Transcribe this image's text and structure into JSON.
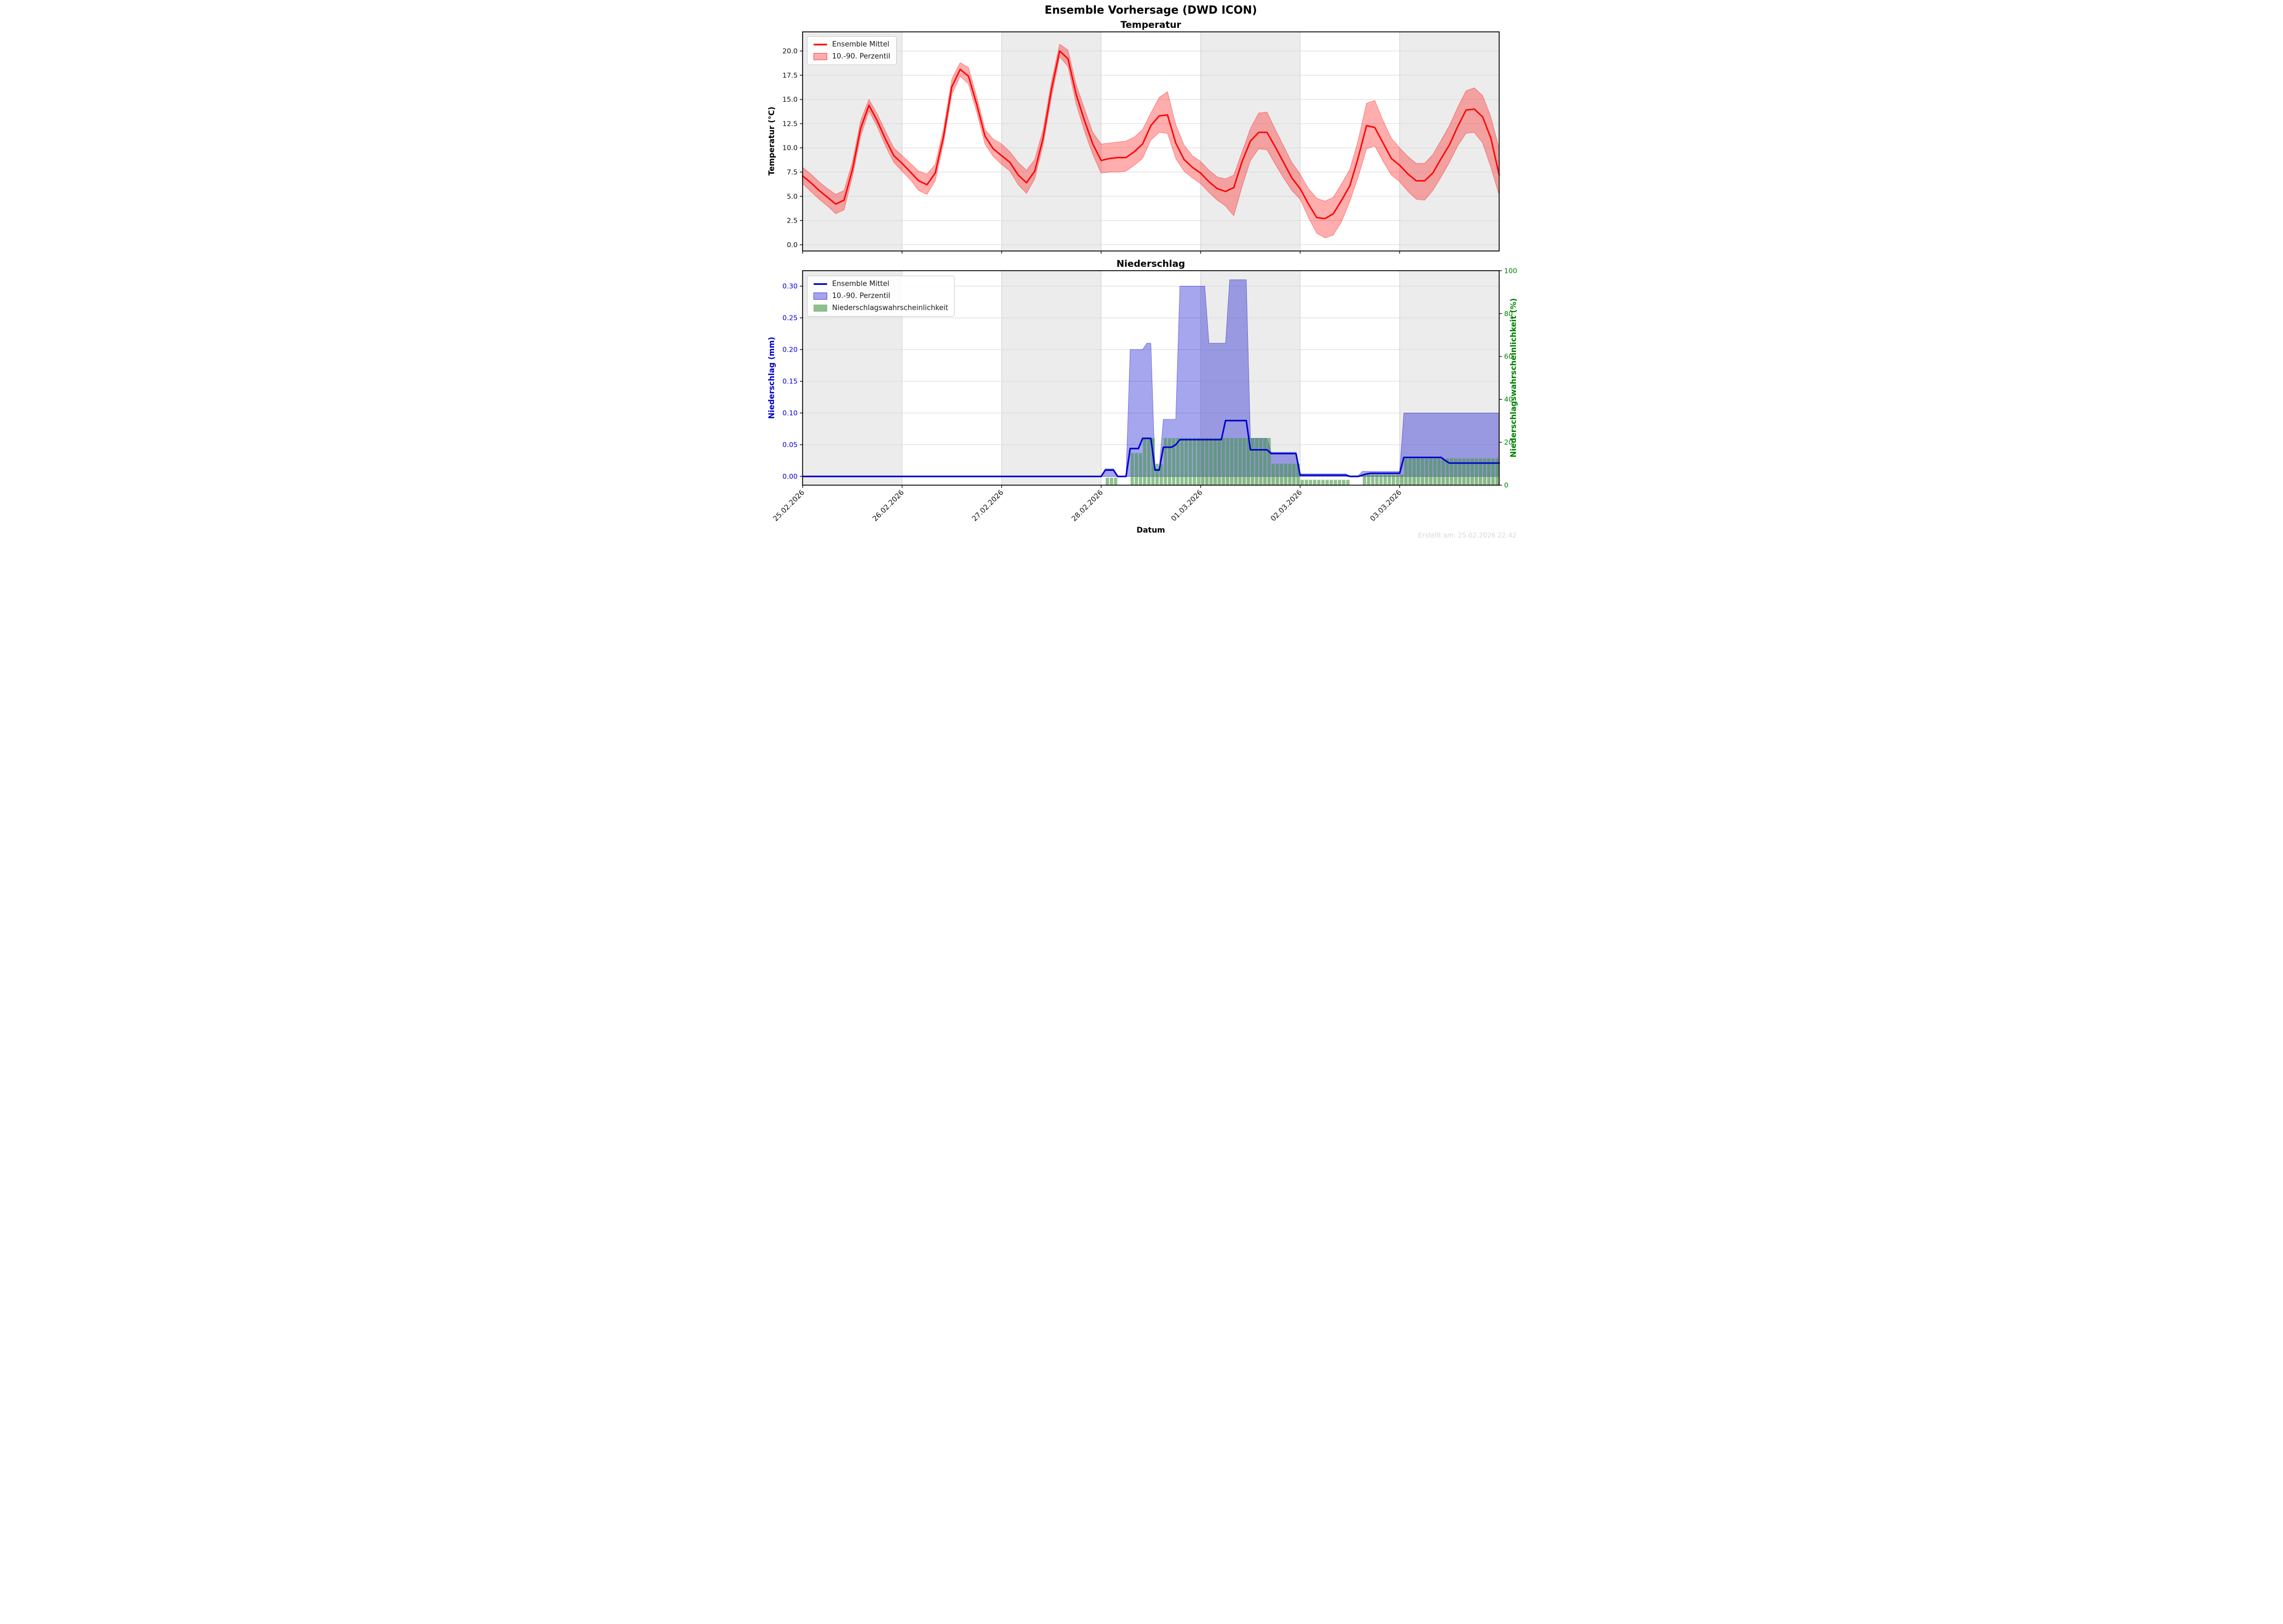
{
  "title": "Ensemble Vorhersage (DWD ICON)",
  "footer": "Erstellt am: 25.02.2026 22:42",
  "x_axis": {
    "label": "Datum",
    "tick_labels": [
      "25.02.2026",
      "26.02.2026",
      "27.02.2026",
      "28.02.2026",
      "01.03.2026",
      "02.03.2026",
      "03.03.2026"
    ],
    "total_hours": 168,
    "day_starts": [
      0,
      24,
      48,
      72,
      96,
      120,
      144
    ]
  },
  "colors": {
    "temp_line": "#ff0000",
    "temp_band_fill": "rgba(255,0,0,0.32)",
    "temp_band_edge": "rgba(255,0,0,0.5)",
    "precip_line": "#0000cd",
    "precip_band_fill": "rgba(0,0,205,0.35)",
    "precip_band_edge": "rgba(0,0,205,0.5)",
    "prob_bar_fill": "rgba(65,150,65,0.59)",
    "day_shade": "#ececec",
    "grid": "#d9d9d9",
    "grid_v": "#d0d0d0",
    "spine": "#000000",
    "tick_label": "#111111",
    "tick_label_mm": "#0000cd",
    "tick_label_pct": "#008000"
  },
  "chart_data": [
    {
      "type": "line",
      "title": "Temperatur",
      "ylabel": "Temperatur (°C)",
      "ylim": [
        -0.64,
        21.97
      ],
      "yticks": [
        0,
        2.5,
        5,
        7.5,
        10,
        12.5,
        15,
        17.5,
        20
      ],
      "ytick_labels": [
        "0.0",
        "2.5",
        "5.0",
        "7.5",
        "10.0",
        "12.5",
        "15.0",
        "17.5",
        "20.0"
      ],
      "x_step_hours": 2,
      "legend": [
        "Ensemble Mittel",
        "10.-90. Perzentil"
      ],
      "mean": [
        7.1,
        6.4,
        5.6,
        4.9,
        4.2,
        4.6,
        7.7,
        12.0,
        14.4,
        12.8,
        10.9,
        9.2,
        8.4,
        7.5,
        6.6,
        6.2,
        7.4,
        11.2,
        16.3,
        18.1,
        17.4,
        14.5,
        11.2,
        9.9,
        9.2,
        8.5,
        7.2,
        6.4,
        7.6,
        11.0,
        16.0,
        20.0,
        19.2,
        15.5,
        12.8,
        10.4,
        8.7,
        8.9,
        9.0,
        9.0,
        9.6,
        10.4,
        12.3,
        13.3,
        13.4,
        10.5,
        8.8,
        8.0,
        7.4,
        6.5,
        5.8,
        5.5,
        5.9,
        8.6,
        10.7,
        11.6,
        11.6,
        10.1,
        8.5,
        6.9,
        5.8,
        4.2,
        2.8,
        2.7,
        3.2,
        4.6,
        6.1,
        9.0,
        12.3,
        12.1,
        10.5,
        8.9,
        8.2,
        7.3,
        6.6,
        6.6,
        7.4,
        8.9,
        10.3,
        12.2,
        13.9,
        14.0,
        13.2,
        11.0,
        7.2
      ],
      "p10": [
        6.3,
        5.5,
        4.7,
        4.0,
        3.2,
        3.6,
        7.0,
        11.2,
        13.8,
        12.2,
        10.2,
        8.5,
        7.6,
        6.7,
        5.6,
        5.2,
        6.6,
        10.5,
        15.5,
        17.4,
        16.6,
        13.7,
        10.4,
        9.1,
        8.3,
        7.6,
        6.2,
        5.3,
        6.8,
        10.3,
        15.2,
        19.4,
        18.4,
        14.5,
        11.7,
        9.3,
        7.4,
        7.5,
        7.5,
        7.6,
        8.2,
        8.9,
        10.8,
        11.6,
        11.5,
        8.9,
        7.6,
        6.9,
        6.3,
        5.4,
        4.6,
        4.0,
        3.0,
        6.0,
        8.7,
        9.9,
        9.8,
        8.3,
        6.9,
        5.6,
        4.7,
        2.8,
        1.2,
        0.7,
        1.0,
        2.4,
        4.5,
        7.0,
        9.9,
        10.2,
        8.6,
        7.2,
        6.5,
        5.5,
        4.7,
        4.6,
        5.6,
        7.0,
        8.5,
        10.2,
        11.5,
        11.6,
        10.5,
        8.0,
        5.1
      ],
      "p90": [
        8.0,
        7.3,
        6.5,
        5.8,
        5.2,
        5.6,
        8.5,
        12.8,
        15.0,
        13.5,
        11.7,
        10.0,
        9.2,
        8.4,
        7.6,
        7.3,
        8.3,
        12.0,
        17.1,
        18.8,
        18.3,
        15.3,
        11.9,
        10.9,
        10.4,
        9.6,
        8.5,
        7.7,
        8.8,
        11.9,
        16.8,
        20.7,
        20.1,
        16.5,
        14.0,
        11.6,
        10.4,
        10.5,
        10.6,
        10.7,
        11.1,
        11.9,
        13.6,
        15.2,
        15.8,
        12.4,
        10.3,
        9.2,
        8.6,
        7.7,
        7.0,
        6.8,
        7.2,
        9.6,
        12.0,
        13.6,
        13.7,
        11.9,
        10.2,
        8.5,
        7.3,
        5.8,
        4.8,
        4.5,
        4.9,
        6.3,
        7.8,
        10.8,
        14.6,
        14.9,
        12.8,
        11.0,
        10.0,
        9.1,
        8.4,
        8.4,
        9.3,
        10.8,
        12.3,
        14.2,
        15.9,
        16.2,
        15.4,
        13.2,
        9.9
      ]
    },
    {
      "type": "line+bars",
      "title": "Niederschlag",
      "ylabel_left": "Niederschlag (mm)",
      "ylabel_right": "Niederschlagswahrscheinlichkeit (%)",
      "ylim_left": [
        -0.0138,
        0.3244
      ],
      "yticks_left": [
        0,
        0.05,
        0.1,
        0.15,
        0.2,
        0.25,
        0.3
      ],
      "ytick_labels_left": [
        "0.00",
        "0.05",
        "0.10",
        "0.15",
        "0.20",
        "0.25",
        "0.30"
      ],
      "ylim_right": [
        0,
        100
      ],
      "yticks_right": [
        0,
        20,
        40,
        60,
        80,
        100
      ],
      "ytick_labels_right": [
        "0",
        "20",
        "40",
        "60",
        "80",
        "100"
      ],
      "x_step_hours": 1,
      "legend": [
        "Ensemble Mittel",
        "10.-90. Perzentil",
        "Niederschlagswahrscheinlichkeit"
      ],
      "mean": [
        0,
        0,
        0,
        0,
        0,
        0,
        0,
        0,
        0,
        0,
        0,
        0,
        0,
        0,
        0,
        0,
        0,
        0,
        0,
        0,
        0,
        0,
        0,
        0,
        0,
        0,
        0,
        0,
        0,
        0,
        0,
        0,
        0,
        0,
        0,
        0,
        0,
        0,
        0,
        0,
        0,
        0,
        0,
        0,
        0,
        0,
        0,
        0,
        0,
        0,
        0,
        0,
        0,
        0,
        0,
        0,
        0,
        0,
        0,
        0,
        0,
        0,
        0,
        0,
        0,
        0,
        0,
        0,
        0,
        0,
        0,
        0,
        0,
        0.01,
        0.01,
        0.01,
        0,
        0,
        0,
        0.044,
        0.044,
        0.044,
        0.06,
        0.06,
        0.06,
        0.01,
        0.01,
        0.046,
        0.046,
        0.046,
        0.05,
        0.058,
        0.058,
        0.058,
        0.058,
        0.058,
        0.058,
        0.058,
        0.058,
        0.058,
        0.058,
        0.058,
        0.088,
        0.088,
        0.088,
        0.088,
        0.088,
        0.088,
        0.042,
        0.042,
        0.042,
        0.042,
        0.042,
        0.036,
        0.036,
        0.036,
        0.036,
        0.036,
        0.036,
        0.036,
        0.002,
        0.002,
        0.002,
        0.002,
        0.002,
        0.002,
        0.002,
        0.002,
        0.002,
        0.002,
        0.002,
        0.002,
        0,
        0,
        0,
        0.002,
        0.004,
        0.005,
        0.005,
        0.005,
        0.005,
        0.005,
        0.005,
        0.005,
        0.005,
        0.03,
        0.03,
        0.03,
        0.03,
        0.03,
        0.03,
        0.03,
        0.03,
        0.03,
        0.03,
        0.025,
        0.021,
        0.021,
        0.021,
        0.021,
        0.021,
        0.021,
        0.021,
        0.021,
        0.021,
        0.021,
        0.021,
        0.021,
        0.021
      ],
      "band_upper": [
        0,
        0,
        0,
        0,
        0,
        0,
        0,
        0,
        0,
        0,
        0,
        0,
        0,
        0,
        0,
        0,
        0,
        0,
        0,
        0,
        0,
        0,
        0,
        0,
        0,
        0,
        0,
        0,
        0,
        0,
        0,
        0,
        0,
        0,
        0,
        0,
        0,
        0,
        0,
        0,
        0,
        0,
        0,
        0,
        0,
        0,
        0,
        0,
        0,
        0,
        0,
        0,
        0,
        0,
        0,
        0,
        0,
        0,
        0,
        0,
        0,
        0,
        0,
        0,
        0,
        0,
        0,
        0,
        0,
        0,
        0,
        0,
        0,
        0.012,
        0.012,
        0.012,
        0,
        0,
        0,
        0.2,
        0.2,
        0.2,
        0.2,
        0.21,
        0.21,
        0.012,
        0.012,
        0.09,
        0.09,
        0.09,
        0.09,
        0.3,
        0.3,
        0.3,
        0.3,
        0.3,
        0.3,
        0.3,
        0.21,
        0.21,
        0.21,
        0.21,
        0.21,
        0.31,
        0.31,
        0.31,
        0.31,
        0.31,
        0.06,
        0.06,
        0.06,
        0.06,
        0.06,
        0.038,
        0.038,
        0.038,
        0.038,
        0.038,
        0.038,
        0.038,
        0.004,
        0.004,
        0.004,
        0.004,
        0.004,
        0.004,
        0.004,
        0.004,
        0.004,
        0.004,
        0.004,
        0.004,
        0.001,
        0.001,
        0.001,
        0.008,
        0.008,
        0.008,
        0.008,
        0.008,
        0.008,
        0.008,
        0.008,
        0.008,
        0.008,
        0.1,
        0.1,
        0.1,
        0.1,
        0.1,
        0.1,
        0.1,
        0.1,
        0.1,
        0.1,
        0.1,
        0.1,
        0.1,
        0.1,
        0.1,
        0.1,
        0.1,
        0.1,
        0.1,
        0.1,
        0.1,
        0.1,
        0.1,
        0.1
      ],
      "band_lower": 0,
      "probability": [
        0,
        0,
        0,
        0,
        0,
        0,
        0,
        0,
        0,
        0,
        0,
        0,
        0,
        0,
        0,
        0,
        0,
        0,
        0,
        0,
        0,
        0,
        0,
        0,
        0,
        0,
        0,
        0,
        0,
        0,
        0,
        0,
        0,
        0,
        0,
        0,
        0,
        0,
        0,
        0,
        0,
        0,
        0,
        0,
        0,
        0,
        0,
        0,
        0,
        0,
        0,
        0,
        0,
        0,
        0,
        0,
        0,
        0,
        0,
        0,
        0,
        0,
        0,
        0,
        0,
        0,
        0,
        0,
        0,
        0,
        0,
        0,
        0,
        3.5,
        3.5,
        3.5,
        0,
        0,
        0,
        15,
        15,
        15,
        22,
        22,
        22,
        10,
        10,
        22,
        22,
        22,
        22,
        22,
        22,
        22,
        22,
        22,
        22,
        22,
        22,
        22,
        22,
        22,
        22,
        22,
        22,
        22,
        22,
        22,
        22,
        22,
        22,
        22,
        22,
        10,
        10,
        10,
        10,
        10,
        10,
        10,
        2.5,
        2.5,
        2.5,
        2.5,
        2.5,
        2.5,
        2.5,
        2.5,
        2.5,
        2.5,
        2.5,
        2.5,
        0,
        0,
        0,
        5,
        5,
        5,
        5,
        5,
        5,
        5,
        5,
        5,
        5,
        12.5,
        12.5,
        12.5,
        12.5,
        12.5,
        12.5,
        12.5,
        12.5,
        12.5,
        12.5,
        12.5,
        12.5,
        12.5,
        12.5,
        12.5,
        12.5,
        12.5,
        12.5,
        12.5,
        12.5,
        12.5,
        12.5,
        12.5,
        12.5
      ]
    }
  ]
}
